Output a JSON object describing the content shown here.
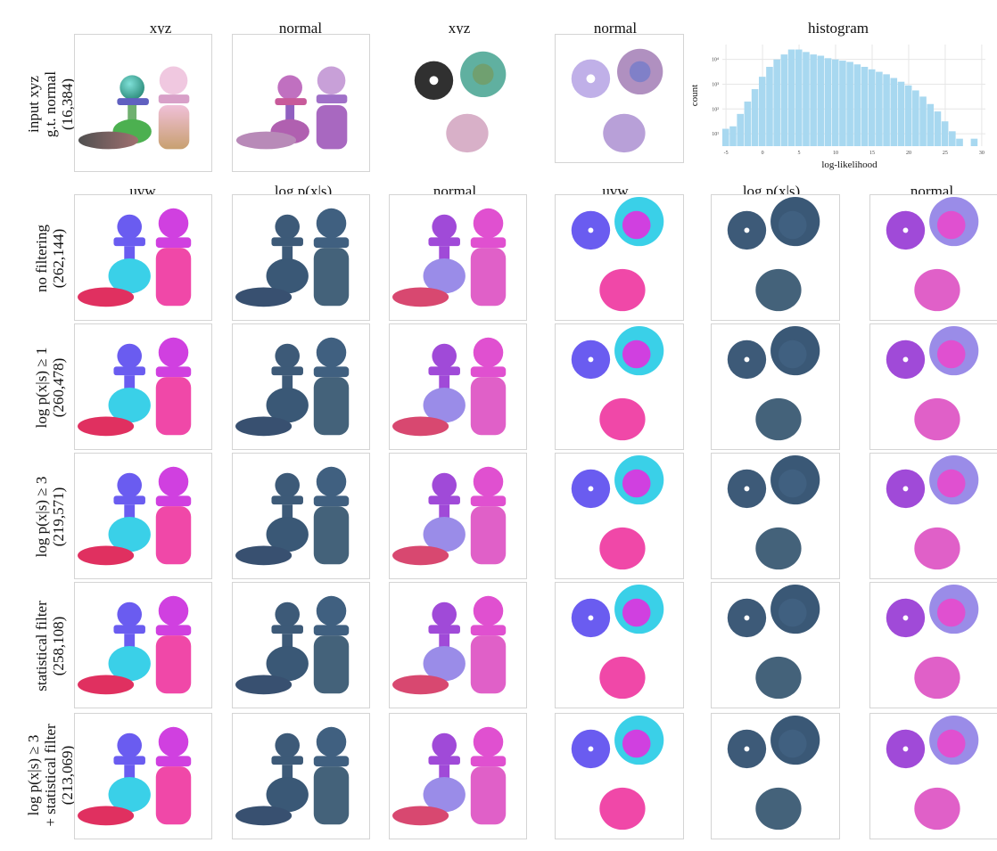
{
  "top_headers": [
    "xyz",
    "normal",
    "xyz",
    "normal",
    "histogram"
  ],
  "grid_headers": [
    "uvw",
    "log p(x|s)",
    "normal",
    "uvw",
    "log p(x|s)",
    "normal"
  ],
  "rows": [
    {
      "line1": "input xyz",
      "line2": "g.t. normal",
      "line3": "(16,384)"
    },
    {
      "line1": "no filtering",
      "line2": "(262,144)",
      "line3": ""
    },
    {
      "line1": "log p(x|s) ≥ 1",
      "line2": "(260,478)",
      "line3": ""
    },
    {
      "line1": "log p(x|s) ≥ 3",
      "line2": "(219,571)",
      "line3": ""
    },
    {
      "line1": "statistical filter",
      "line2": "(258,108)",
      "line3": ""
    },
    {
      "line1": "log p(x|s) ≥ 3",
      "line2": "+ statistical filter",
      "line3": "(213,069)"
    }
  ],
  "chart_data": {
    "type": "bar",
    "title": "histogram",
    "xlabel": "log-likelihood",
    "ylabel": "count",
    "x_ticks": [
      "-5",
      "0",
      "5",
      "10",
      "15",
      "20",
      "25",
      "30"
    ],
    "y_ticks": [
      "10¹",
      "10²",
      "10³",
      "10⁴"
    ],
    "y_scale": "log",
    "xlim": [
      -5.5,
      30.5
    ],
    "ylim": [
      0.5,
      4.6
    ],
    "bin_width": 1,
    "bin_starts": [
      -5,
      -4,
      -3,
      -2,
      -1,
      0,
      1,
      2,
      3,
      4,
      5,
      6,
      7,
      8,
      9,
      10,
      11,
      12,
      13,
      14,
      15,
      16,
      17,
      18,
      19,
      20,
      21,
      22,
      23,
      24,
      25,
      26,
      27,
      28,
      29,
      30
    ],
    "log10_counts": [
      1.2,
      1.3,
      1.8,
      2.3,
      2.8,
      3.3,
      3.7,
      4.0,
      4.2,
      4.4,
      4.4,
      4.3,
      4.2,
      4.15,
      4.05,
      4.0,
      3.95,
      3.9,
      3.8,
      3.7,
      3.6,
      3.5,
      3.4,
      3.25,
      3.1,
      2.95,
      2.75,
      2.5,
      2.2,
      1.9,
      1.5,
      1.1,
      0.8,
      0,
      0.8,
      0
    ],
    "bar_color": "#a8d8f0",
    "grid": true
  }
}
